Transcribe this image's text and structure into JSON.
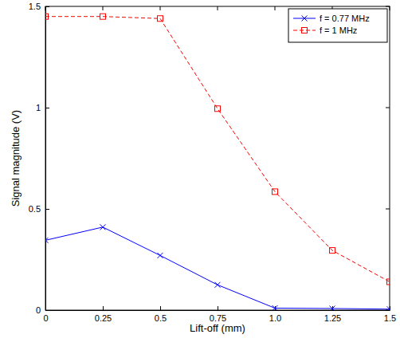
{
  "chart_data": {
    "type": "line",
    "x_label": "Lift-off (mm)",
    "y_label": "Signal magnitude (V)",
    "x": [
      0,
      0.25,
      0.5,
      0.75,
      1,
      1.25,
      1.5
    ],
    "xlim": [
      0,
      1.5
    ],
    "xticks": [
      0,
      0.25,
      0.5,
      0.75,
      {
        "value": 1,
        "label": "1.0"
      },
      1.25,
      1.5
    ],
    "ylim": [
      0,
      1.5
    ],
    "yticks": [
      0,
      0.5,
      1,
      1.5
    ],
    "grid": false,
    "legend": "northeast",
    "series": [
      {
        "name": "f = 0.77 MHz",
        "color": "#0000ff",
        "marker": "x",
        "line_style": "solid",
        "values": [
          0.345,
          0.41,
          0.27,
          0.125,
          0.01,
          0.008,
          0.005
        ]
      },
      {
        "name": "f = 1 MHz",
        "color": "#ff0000",
        "marker": "square",
        "line_style": "dashed",
        "values": [
          1.45,
          1.45,
          1.44,
          0.995,
          0.585,
          0.295,
          0.14
        ]
      }
    ]
  }
}
